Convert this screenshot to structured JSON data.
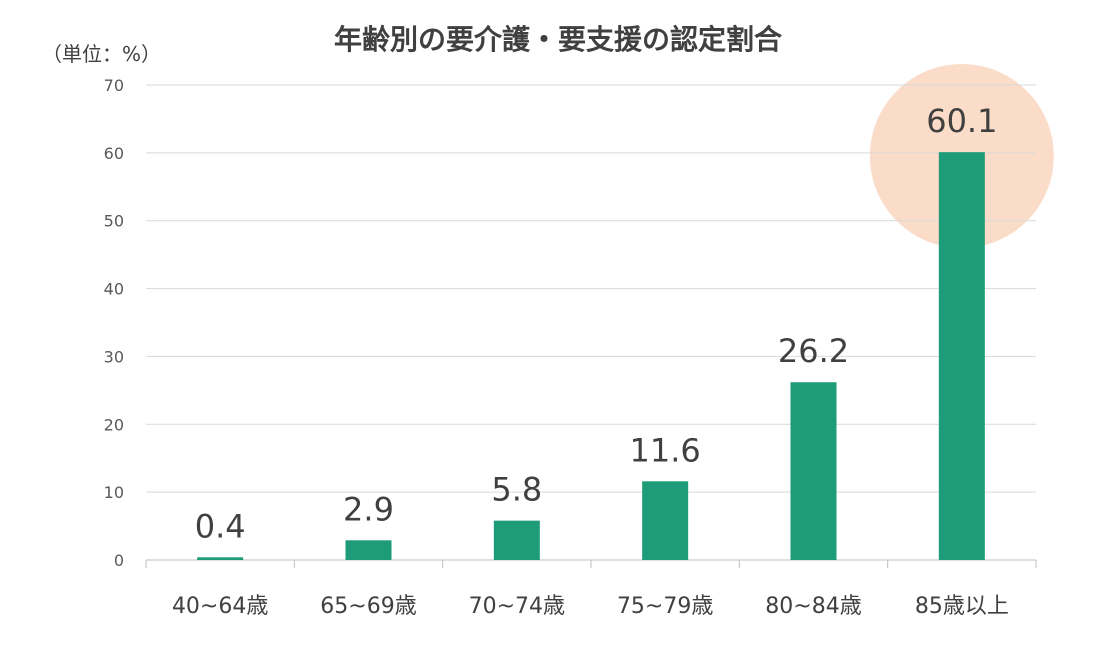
{
  "chart_data": {
    "type": "bar",
    "title": "年齢別の要介護・要支援の認定割合",
    "unit_label": "（単位：%）",
    "categories": [
      "40~64歳",
      "65~69歳",
      "70~74歳",
      "75~79歳",
      "80~84歳",
      "85歳以上"
    ],
    "values": [
      0.4,
      2.9,
      5.8,
      11.6,
      26.2,
      60.1
    ],
    "value_labels": [
      "0.4",
      "2.9",
      "5.8",
      "11.6",
      "26.2",
      "60.1"
    ],
    "ylim": [
      0,
      70
    ],
    "yticks": [
      "0",
      "10",
      "20",
      "30",
      "40",
      "50",
      "60",
      "70"
    ],
    "grid": true,
    "highlight_index": 5,
    "colors": {
      "bar": "#1e9b78",
      "highlight": "#fbdcc8",
      "grid": "#d9d9d9",
      "text": "#404040"
    }
  }
}
